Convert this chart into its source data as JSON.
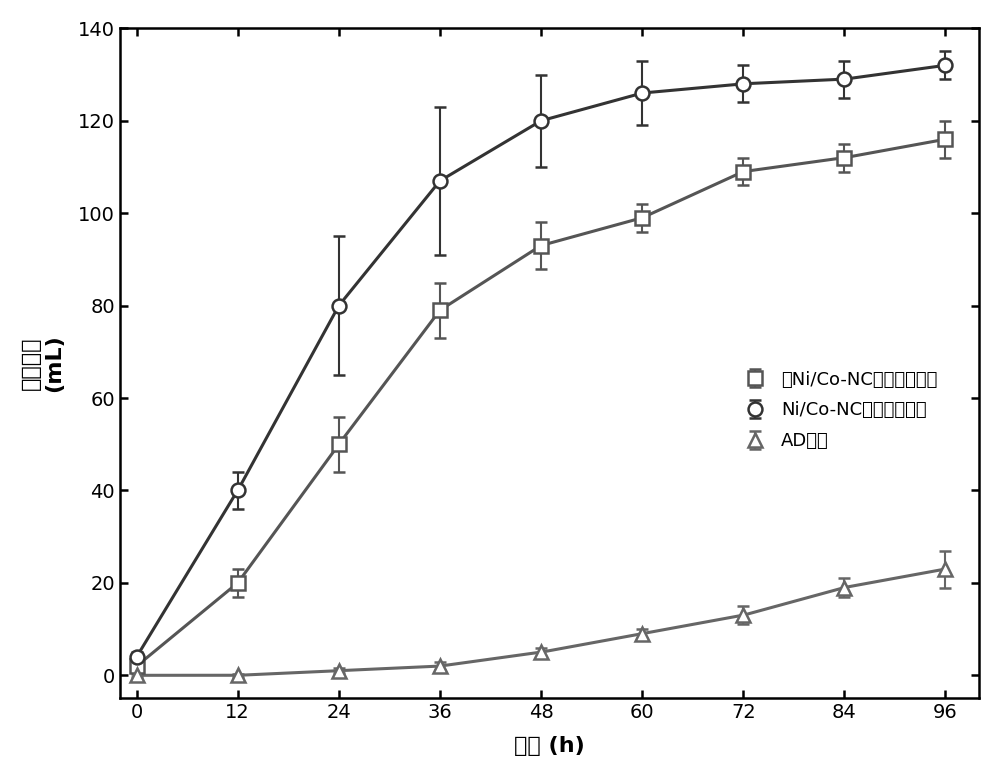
{
  "x_ticks": [
    0,
    12,
    24,
    36,
    48,
    60,
    72,
    84,
    96
  ],
  "series": [
    {
      "name": "无Ni/Co-NC修饰阴极系统",
      "marker": "s",
      "x": [
        0,
        12,
        24,
        36,
        48,
        60,
        72,
        84,
        96
      ],
      "y": [
        2,
        20,
        50,
        79,
        93,
        99,
        109,
        112,
        116
      ],
      "yerr": [
        1,
        3,
        6,
        6,
        5,
        3,
        3,
        3,
        4
      ],
      "color": "#555555",
      "fit_p0": [
        120,
        0.12,
        32
      ]
    },
    {
      "name": "Ni/Co-NC修饰阴极系统",
      "marker": "o",
      "x": [
        0,
        12,
        24,
        36,
        48,
        60,
        72,
        84,
        96
      ],
      "y": [
        4,
        40,
        80,
        107,
        120,
        126,
        128,
        129,
        132
      ],
      "yerr": [
        1,
        4,
        15,
        16,
        10,
        7,
        4,
        4,
        3
      ],
      "color": "#333333",
      "fit_p0": [
        135,
        0.17,
        25
      ]
    },
    {
      "name": "AD系统",
      "marker": "^",
      "x": [
        0,
        12,
        24,
        36,
        48,
        60,
        72,
        84,
        96
      ],
      "y": [
        0,
        0,
        1,
        2,
        5,
        9,
        13,
        19,
        23
      ],
      "yerr": [
        0.3,
        0.3,
        0.5,
        0.8,
        1,
        1,
        2,
        2,
        4
      ],
      "color": "#666666",
      "fit_p0": [
        35,
        0.07,
        80
      ]
    }
  ],
  "xlabel": "时间 (h)",
  "ylabel_line1": "甲烷体积",
  "ylabel_line2": "(mL)",
  "ylim": [
    -5,
    140
  ],
  "xlim": [
    -2,
    100
  ],
  "background_color": "#ffffff",
  "legend_fontsize": 13,
  "axis_label_fontsize": 16,
  "tick_fontsize": 14,
  "markersize": 10,
  "linewidth": 2.2
}
